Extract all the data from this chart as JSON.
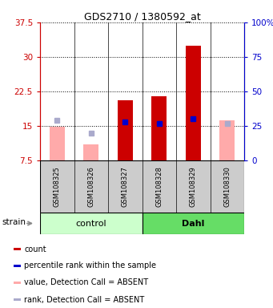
{
  "title": "GDS2710 / 1380592_at",
  "samples": [
    "GSM108325",
    "GSM108326",
    "GSM108327",
    "GSM108328",
    "GSM108329",
    "GSM108330"
  ],
  "groups": [
    "control",
    "control",
    "control",
    "Dahl",
    "Dahl",
    "Dahl"
  ],
  "group_labels": [
    "control",
    "Dahl"
  ],
  "group_colors_light": [
    "#ccffcc",
    "#66dd66"
  ],
  "ylim_left": [
    7.5,
    37.5
  ],
  "ylim_right": [
    0,
    100
  ],
  "yticks_left": [
    7.5,
    15.0,
    22.5,
    30.0,
    37.5
  ],
  "ytick_labels_left": [
    "7.5",
    "15",
    "22.5",
    "30",
    "37.5"
  ],
  "yticks_right": [
    0,
    25,
    50,
    75,
    100
  ],
  "ytick_labels_right": [
    "0",
    "25",
    "50",
    "75",
    "100%"
  ],
  "count_values": [
    null,
    null,
    20.5,
    21.5,
    32.5,
    null
  ],
  "rank_values": [
    null,
    null,
    15.8,
    15.5,
    16.5,
    null
  ],
  "absent_value_values": [
    14.8,
    11.0,
    null,
    null,
    null,
    16.2
  ],
  "absent_rank_values": [
    16.2,
    13.5,
    null,
    null,
    null,
    15.5
  ],
  "bar_bottom": 7.5,
  "count_color": "#cc0000",
  "rank_color": "#0000cc",
  "absent_value_color": "#ffaaaa",
  "absent_rank_color": "#aaaacc",
  "bar_width": 0.45,
  "left_axis_color": "#cc0000",
  "right_axis_color": "#0000cc",
  "legend_items": [
    {
      "color": "#cc0000",
      "label": "count"
    },
    {
      "color": "#0000cc",
      "label": "percentile rank within the sample"
    },
    {
      "color": "#ffaaaa",
      "label": "value, Detection Call = ABSENT"
    },
    {
      "color": "#aaaacc",
      "label": "rank, Detection Call = ABSENT"
    }
  ],
  "strain_label": "strain",
  "sample_box_color": "#cccccc",
  "fig_width": 3.41,
  "fig_height": 3.84,
  "dpi": 100
}
